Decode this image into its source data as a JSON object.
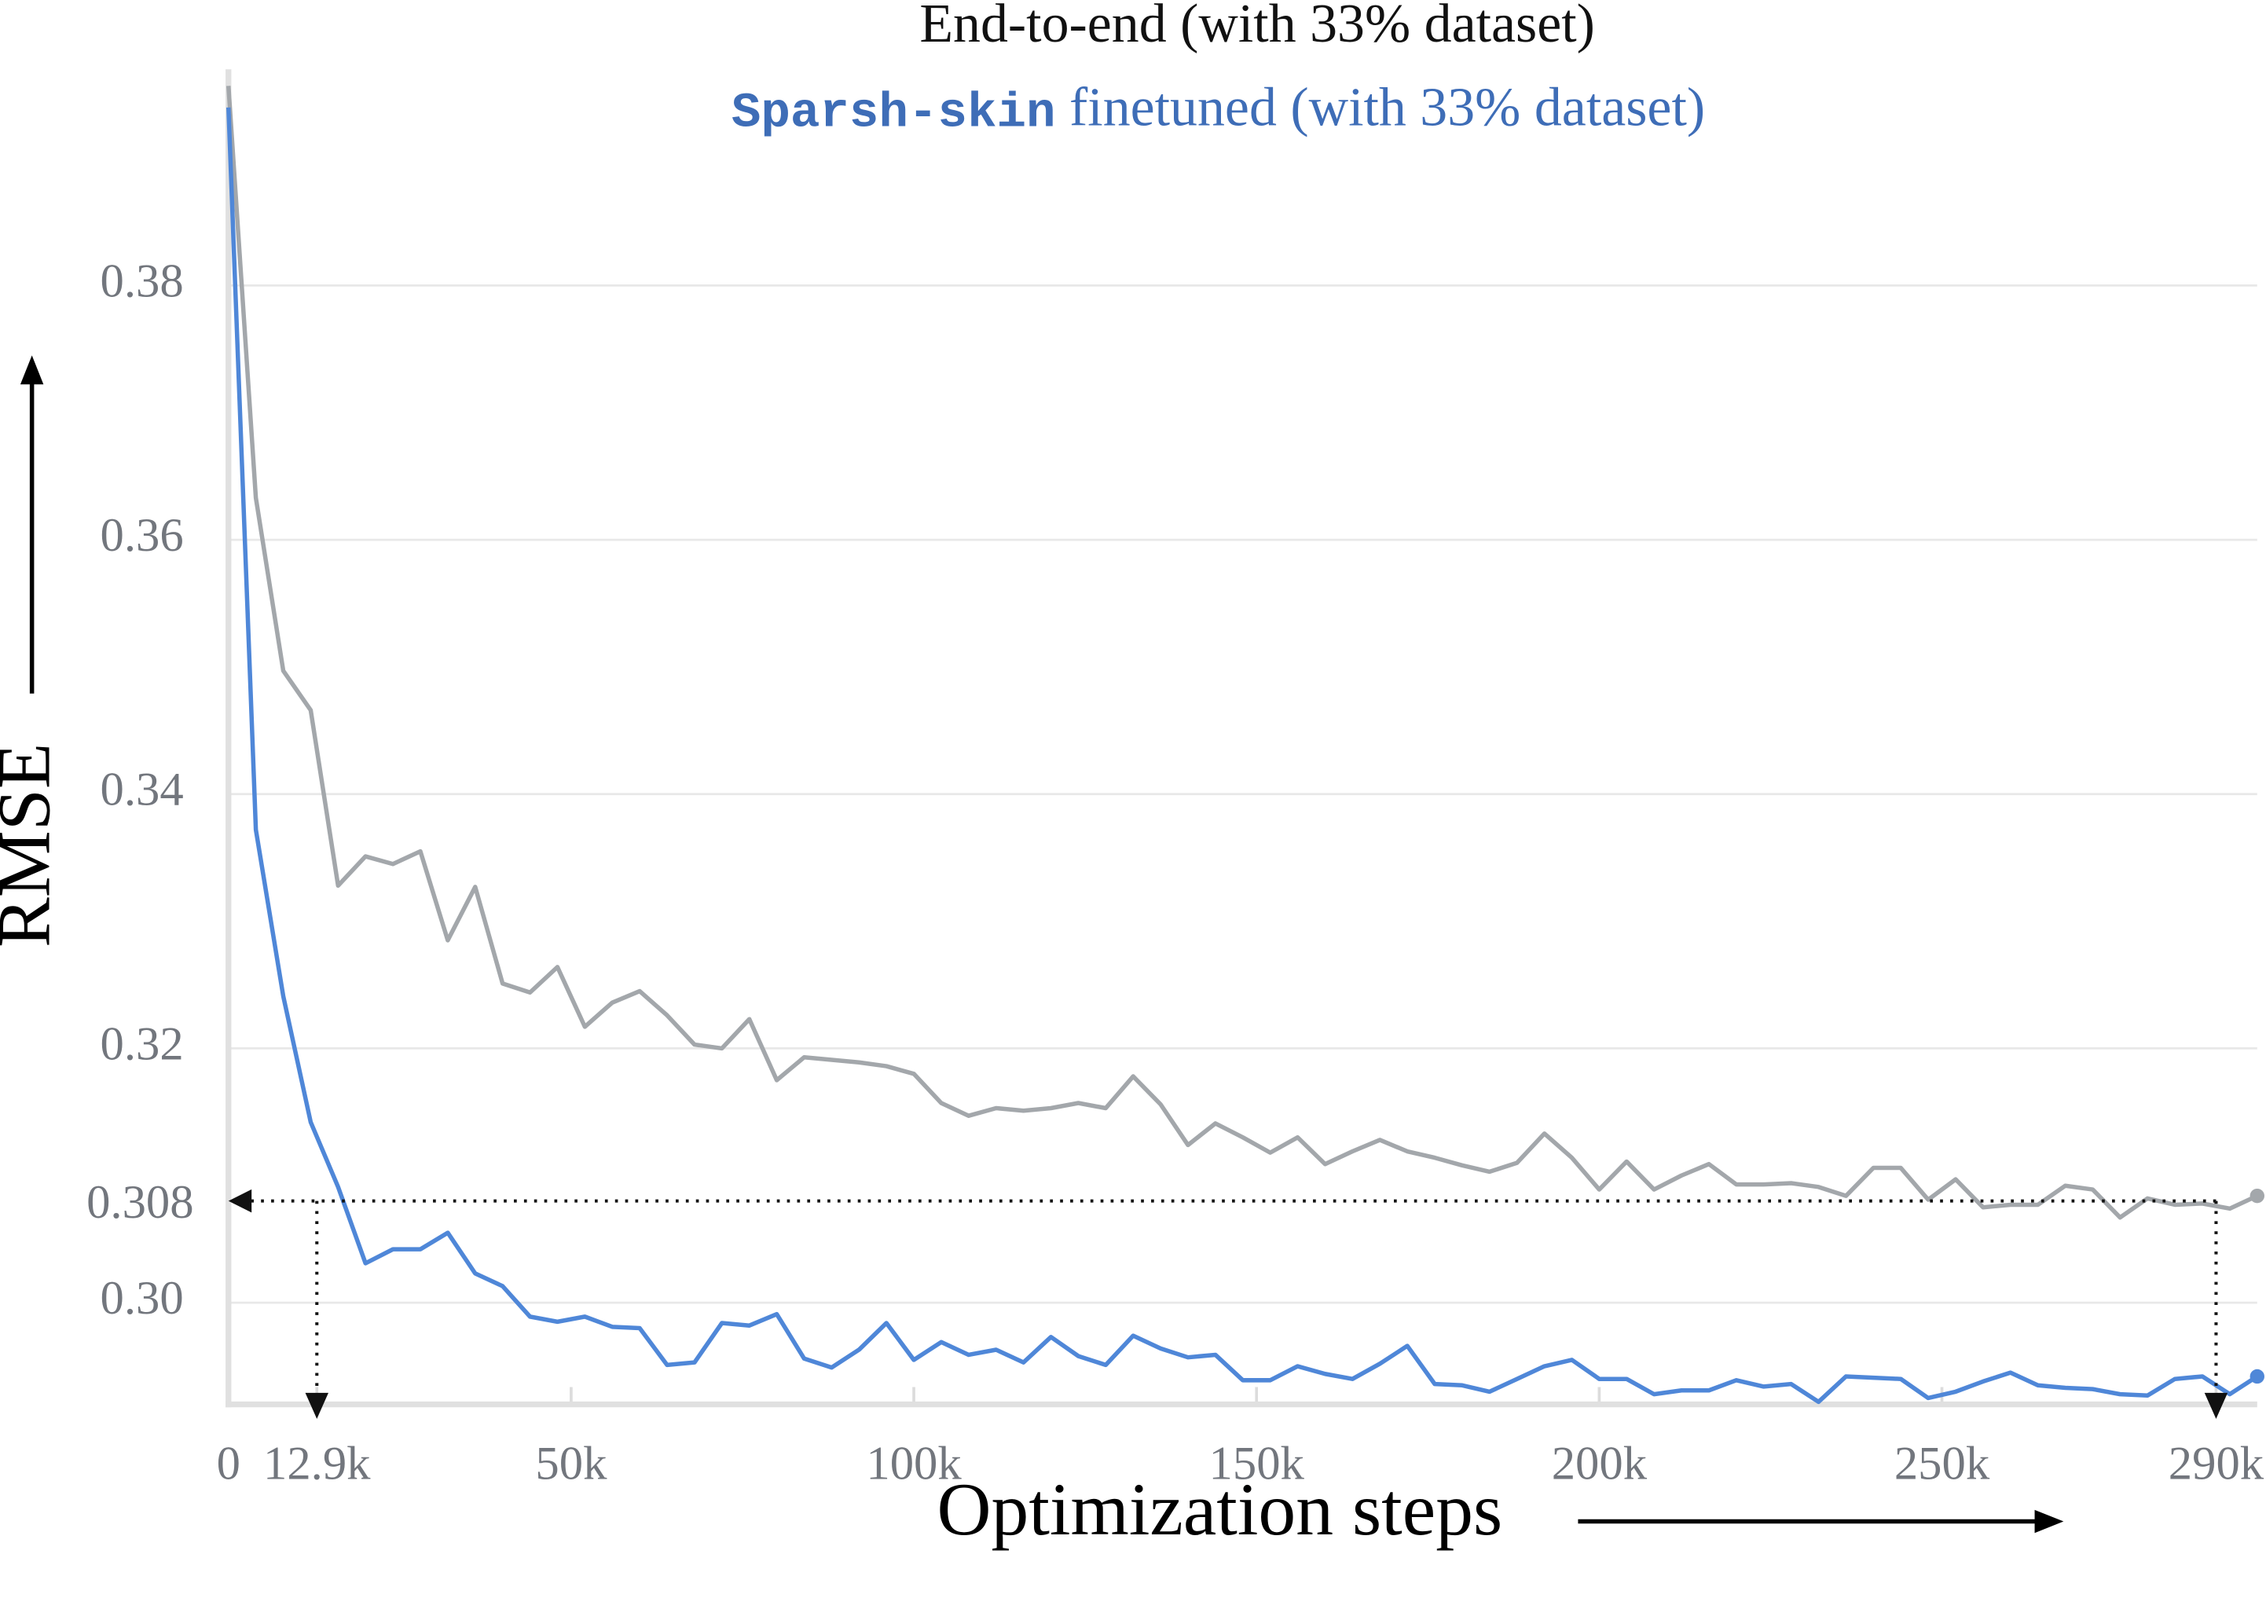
{
  "chart_data": {
    "type": "line",
    "x_label": "Optimization steps",
    "y_label": "RMSE",
    "x": [
      0,
      4000,
      8000,
      12000,
      16000,
      20000,
      24000,
      28000,
      32000,
      36000,
      40000,
      44000,
      48000,
      52000,
      56000,
      60000,
      64000,
      68000,
      72000,
      76000,
      80000,
      84000,
      88000,
      92000,
      96000,
      100000,
      104000,
      108000,
      112000,
      116000,
      120000,
      124000,
      128000,
      132000,
      136000,
      140000,
      144000,
      148000,
      152000,
      156000,
      160000,
      164000,
      168000,
      172000,
      176000,
      180000,
      184000,
      188000,
      192000,
      196000,
      200000,
      204000,
      208000,
      212000,
      216000,
      220000,
      224000,
      228000,
      232000,
      236000,
      240000,
      244000,
      248000,
      252000,
      256000,
      260000,
      264000,
      268000,
      272000,
      276000,
      280000,
      284000,
      288000,
      292000,
      296000
    ],
    "series": [
      {
        "name": "End-to-end (with 33% dataset)",
        "color": "#a3a7ab",
        "values": [
          0.3957,
          0.3633,
          0.3497,
          0.3466,
          0.3328,
          0.3351,
          0.3345,
          0.3355,
          0.3285,
          0.3327,
          0.3251,
          0.3244,
          0.3264,
          0.3217,
          0.3236,
          0.3245,
          0.3226,
          0.3203,
          0.32,
          0.3223,
          0.3175,
          0.3193,
          0.3191,
          0.3189,
          0.3186,
          0.318,
          0.3157,
          0.3147,
          0.3153,
          0.3151,
          0.3153,
          0.3157,
          0.3153,
          0.3178,
          0.3156,
          0.3124,
          0.3141,
          0.313,
          0.3118,
          0.313,
          0.3109,
          0.3119,
          0.3128,
          0.3119,
          0.3114,
          0.3108,
          0.3103,
          0.311,
          0.3133,
          0.3114,
          0.3089,
          0.3111,
          0.3089,
          0.31,
          0.3109,
          0.3093,
          0.3093,
          0.3094,
          0.3091,
          0.3084,
          0.3106,
          0.3106,
          0.3081,
          0.3097,
          0.3075,
          0.3077,
          0.3077,
          0.3092,
          0.3089,
          0.3067,
          0.3082,
          0.3077,
          0.3078,
          0.3074,
          0.3084
        ]
      },
      {
        "name": "Sparsh-skin finetuned (with 33% dataset)",
        "color": "#4f87d8",
        "values": [
          0.394,
          0.3372,
          0.3241,
          0.3142,
          0.3091,
          0.3031,
          0.3042,
          0.3042,
          0.3055,
          0.3023,
          0.3013,
          0.2989,
          0.2985,
          0.2989,
          0.2981,
          0.298,
          0.2951,
          0.2953,
          0.2984,
          0.2982,
          0.2991,
          0.2956,
          0.2949,
          0.2963,
          0.2984,
          0.2955,
          0.2969,
          0.2959,
          0.2963,
          0.2953,
          0.2973,
          0.2958,
          0.2951,
          0.2974,
          0.2964,
          0.2957,
          0.2959,
          0.2939,
          0.2939,
          0.295,
          0.2944,
          0.294,
          0.2952,
          0.2966,
          0.2936,
          0.2935,
          0.293,
          0.294,
          0.295,
          0.2955,
          0.294,
          0.294,
          0.2928,
          0.2931,
          0.2931,
          0.2939,
          0.2934,
          0.2936,
          0.2922,
          0.2942,
          0.2941,
          0.294,
          0.2925,
          0.293,
          0.2938,
          0.2945,
          0.2935,
          0.2933,
          0.2932,
          0.2928,
          0.2927,
          0.294,
          0.2942,
          0.2928,
          0.2942
        ]
      }
    ],
    "xlim": [
      0,
      296000
    ],
    "ylim": [
      0.292,
      0.397
    ],
    "xticks": [
      0,
      {
        "value": 12900,
        "label": "12.9k"
      },
      {
        "value": 50000,
        "label": "50k"
      },
      {
        "value": 100000,
        "label": "100k"
      },
      {
        "value": 150000,
        "label": "150k"
      },
      {
        "value": 200000,
        "label": "200k"
      },
      {
        "value": 250000,
        "label": "250k"
      },
      {
        "value": 290000,
        "label": "290k"
      }
    ],
    "yticks": [
      {
        "value": 0.3,
        "label": "0.30"
      },
      0.32,
      0.34,
      0.36,
      0.38
    ],
    "reference": {
      "y": 0.308,
      "x": [
        12900,
        290000
      ]
    },
    "grid": true
  }
}
